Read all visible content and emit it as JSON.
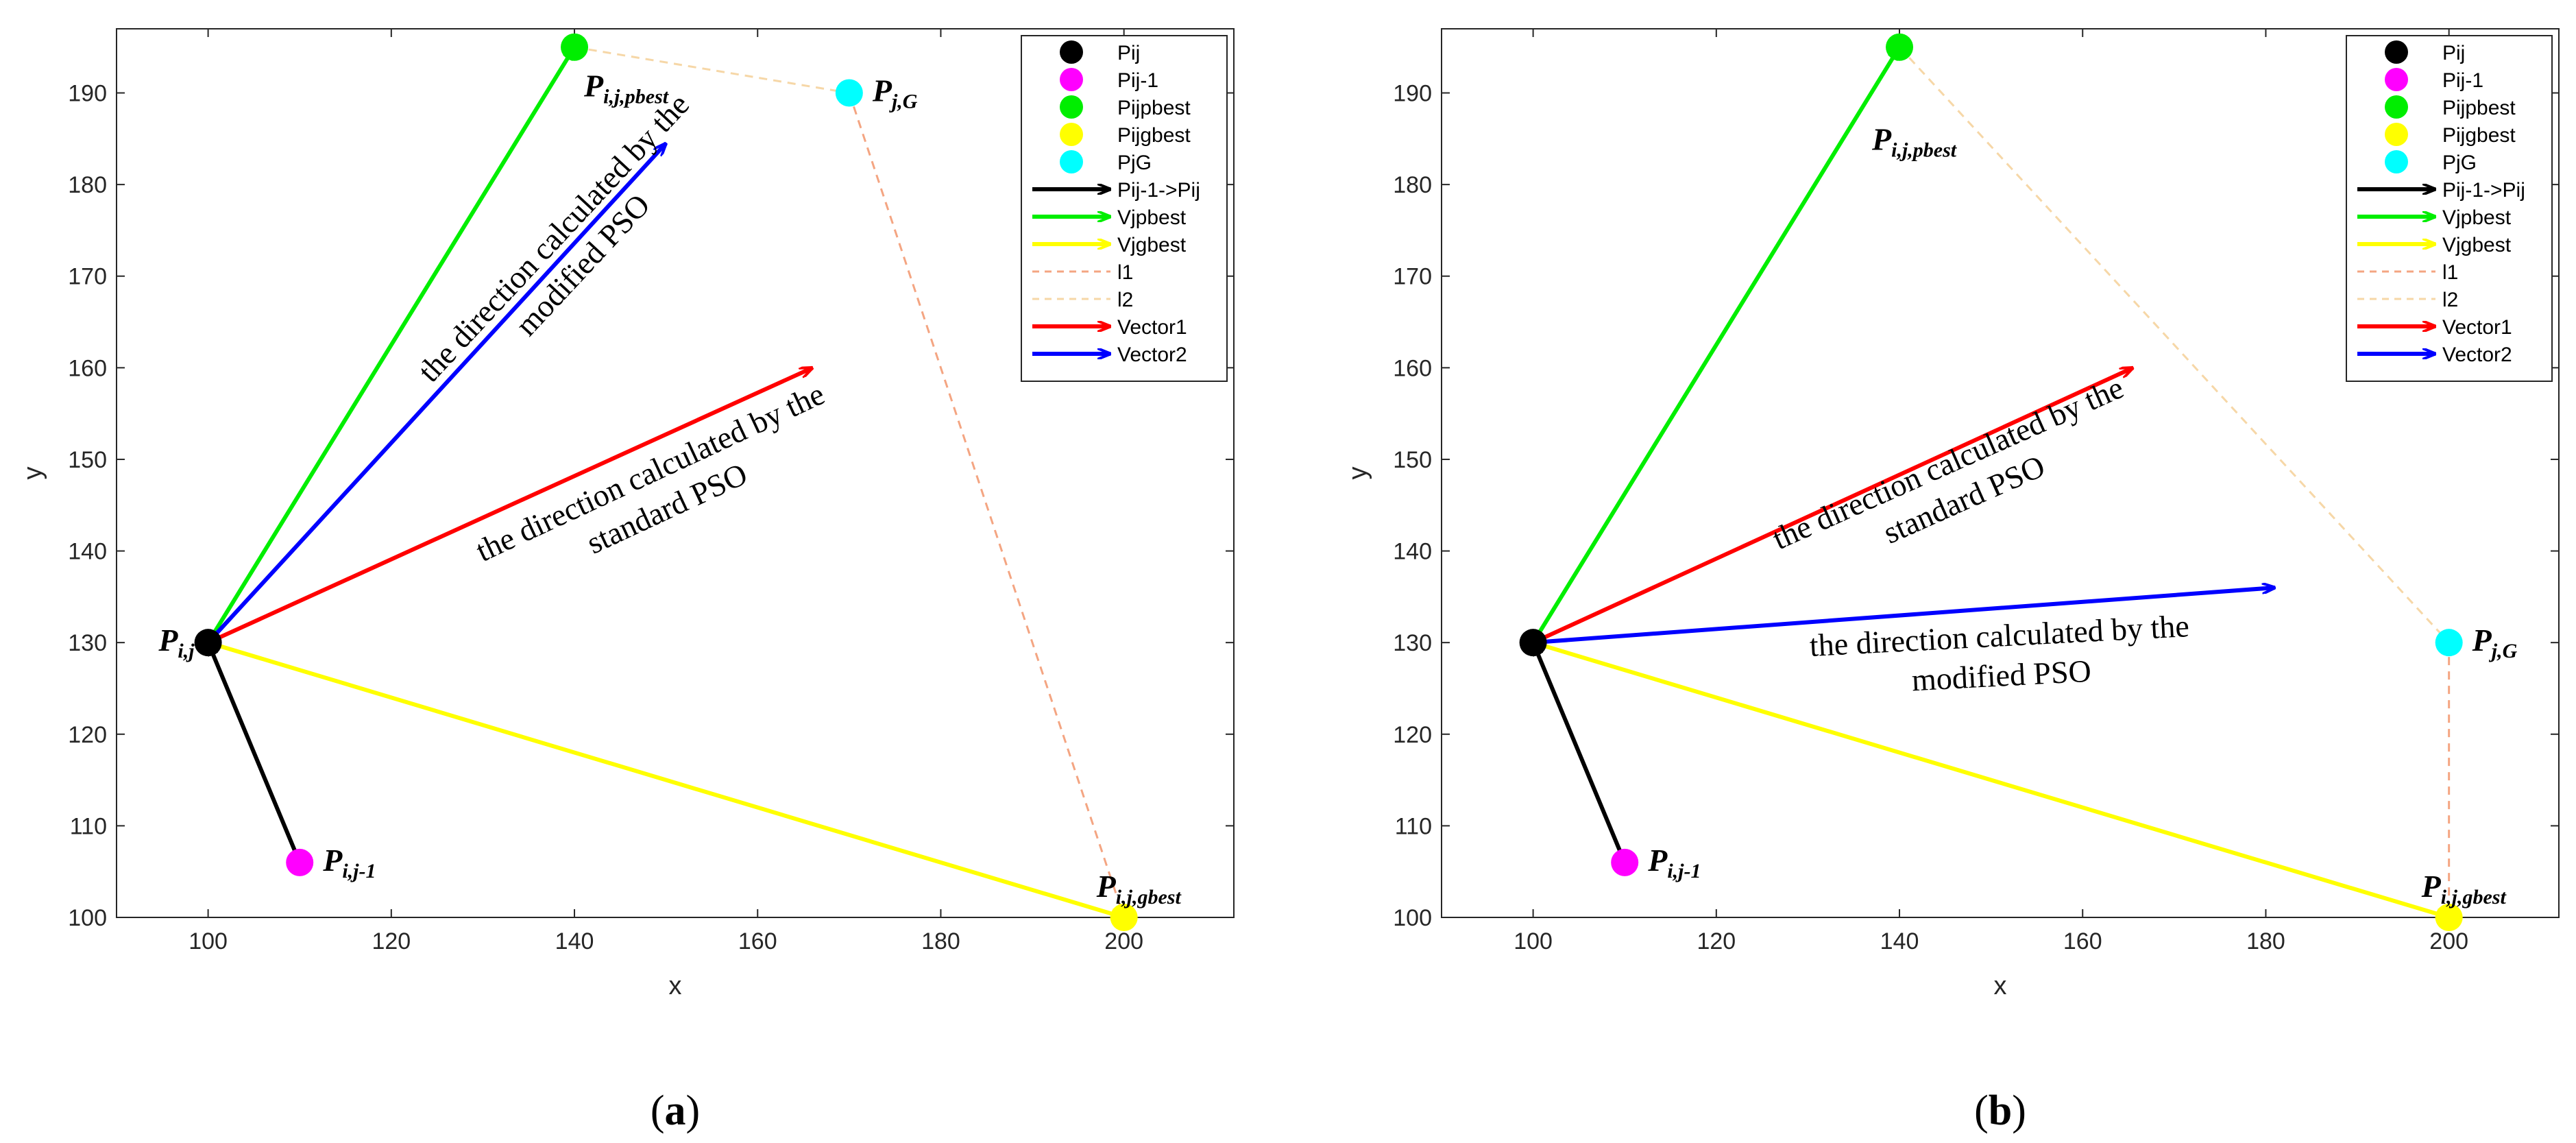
{
  "chart_data": [
    {
      "type": "scatter",
      "panel": "a",
      "caption_open": "(",
      "caption_letter": "a",
      "caption_close": ")",
      "xlabel": "x",
      "ylabel": "y",
      "xlim": [
        90,
        212
      ],
      "ylim": [
        100,
        197
      ],
      "xticks": [
        100,
        120,
        140,
        160,
        180,
        200
      ],
      "yticks": [
        100,
        110,
        120,
        130,
        140,
        150,
        160,
        170,
        180,
        190
      ],
      "points": [
        {
          "name": "Pij",
          "x": 100,
          "y": 130,
          "color": "#000000",
          "label_main": "P",
          "label_sub": "i,j",
          "label_pos": "left"
        },
        {
          "name": "Pij-1",
          "x": 110,
          "y": 106,
          "color": "#ff00ff",
          "label_main": "P",
          "label_sub": "i,j-1",
          "label_pos": "right"
        },
        {
          "name": "Pijpbest",
          "x": 140,
          "y": 195,
          "color": "#00ee00",
          "label_main": "P",
          "label_sub": "i,j,pbest",
          "label_pos": "below-right"
        },
        {
          "name": "Pijgbest",
          "x": 200,
          "y": 100,
          "color": "#ffff00",
          "label_main": "P",
          "label_sub": "i,j,gbest",
          "label_pos": "above-right"
        },
        {
          "name": "PjG",
          "x": 170,
          "y": 190,
          "color": "#00ffff",
          "label_main": "P",
          "label_sub": "j,G",
          "label_pos": "right"
        }
      ],
      "arrows": [
        {
          "name": "Pij-1->Pij",
          "from": [
            110,
            106
          ],
          "to": [
            100,
            130
          ],
          "color": "#000000"
        },
        {
          "name": "Vjpbest",
          "from": [
            100,
            130
          ],
          "to": [
            140,
            195
          ],
          "color": "#00ee00"
        },
        {
          "name": "Vjgbest",
          "from": [
            100,
            130
          ],
          "to": [
            200,
            100
          ],
          "color": "#ffff00"
        },
        {
          "name": "Vector1",
          "from": [
            100,
            130
          ],
          "to": [
            166,
            160
          ],
          "color": "#ff0000"
        },
        {
          "name": "Vector2",
          "from": [
            100,
            130
          ],
          "to": [
            150,
            184.5
          ],
          "color": "#0000ff"
        }
      ],
      "dashed_lines": [
        {
          "name": "l1",
          "points": [
            [
              170,
              190
            ],
            [
              200,
              100
            ]
          ],
          "color": "#f4a582"
        },
        {
          "name": "l2",
          "points": [
            [
              140,
              195
            ],
            [
              170,
              190
            ]
          ],
          "color": "#f6d7a7"
        }
      ],
      "annotations": [
        {
          "id": "modified",
          "lines": [
            "the direction calculated by the",
            "modified PSO"
          ],
          "x": 139,
          "y": 173,
          "angle": -47
        },
        {
          "id": "standard",
          "lines": [
            "the direction calculated by the",
            "standard PSO"
          ],
          "x": 149,
          "y": 147,
          "angle": -25
        }
      ],
      "legend": [
        "Pij",
        "Pij-1",
        "Pijpbest",
        "Pijgbest",
        "PjG",
        "Pij-1->Pij",
        "Vjpbest",
        "Vjgbest",
        "l1",
        "l2",
        "Vector1",
        "Vector2"
      ]
    },
    {
      "type": "scatter",
      "panel": "b",
      "caption_open": "(",
      "caption_letter": "b",
      "caption_close": ")",
      "xlabel": "x",
      "ylabel": "y",
      "xlim": [
        90,
        212
      ],
      "ylim": [
        100,
        197
      ],
      "xticks": [
        100,
        120,
        140,
        160,
        180,
        200
      ],
      "yticks": [
        100,
        110,
        120,
        130,
        140,
        150,
        160,
        170,
        180,
        190
      ],
      "points": [
        {
          "name": "Pij",
          "x": 100,
          "y": 130,
          "color": "#000000",
          "label_main": "",
          "label_sub": "",
          "label_pos": "none"
        },
        {
          "name": "Pij-1",
          "x": 110,
          "y": 106,
          "color": "#ff00ff",
          "label_main": "P",
          "label_sub": "i,j-1",
          "label_pos": "right"
        },
        {
          "name": "Pijpbest",
          "x": 140,
          "y": 195,
          "color": "#00ee00",
          "label_main": "P",
          "label_sub": "i,j,pbest",
          "label_pos": "below"
        },
        {
          "name": "Pijgbest",
          "x": 200,
          "y": 100,
          "color": "#ffff00",
          "label_main": "P",
          "label_sub": "i,j,gbest",
          "label_pos": "above-right"
        },
        {
          "name": "PjG",
          "x": 200,
          "y": 130,
          "color": "#00ffff",
          "label_main": "P",
          "label_sub": "j,G",
          "label_pos": "right"
        }
      ],
      "arrows": [
        {
          "name": "Pij-1->Pij",
          "from": [
            110,
            106
          ],
          "to": [
            100,
            130
          ],
          "color": "#000000"
        },
        {
          "name": "Vjpbest",
          "from": [
            100,
            130
          ],
          "to": [
            140,
            195
          ],
          "color": "#00ee00"
        },
        {
          "name": "Vjgbest",
          "from": [
            100,
            130
          ],
          "to": [
            200,
            100
          ],
          "color": "#ffff00"
        },
        {
          "name": "Vector1",
          "from": [
            100,
            130
          ],
          "to": [
            165.5,
            160
          ],
          "color": "#ff0000"
        },
        {
          "name": "Vector2",
          "from": [
            100,
            130
          ],
          "to": [
            181,
            136
          ],
          "color": "#0000ff"
        }
      ],
      "dashed_lines": [
        {
          "name": "l1",
          "points": [
            [
              200,
              130
            ],
            [
              200,
              100
            ]
          ],
          "color": "#f4a582"
        },
        {
          "name": "l2",
          "points": [
            [
              140,
              195
            ],
            [
              200,
              130
            ]
          ],
          "color": "#f6d7a7"
        }
      ],
      "annotations": [
        {
          "id": "standard",
          "lines": [
            "the direction calculated by the",
            "standard PSO"
          ],
          "x": 146,
          "y": 148,
          "angle": -24
        },
        {
          "id": "modified",
          "lines": [
            "the direction calculated by the",
            "modified PSO"
          ],
          "x": 151,
          "y": 129,
          "angle": -3
        }
      ],
      "legend": [
        "Pij",
        "Pij-1",
        "Pijpbest",
        "Pijgbest",
        "PjG",
        "Pij-1->Pij",
        "Vjpbest",
        "Vjgbest",
        "l1",
        "l2",
        "Vector1",
        "Vector2"
      ]
    }
  ]
}
